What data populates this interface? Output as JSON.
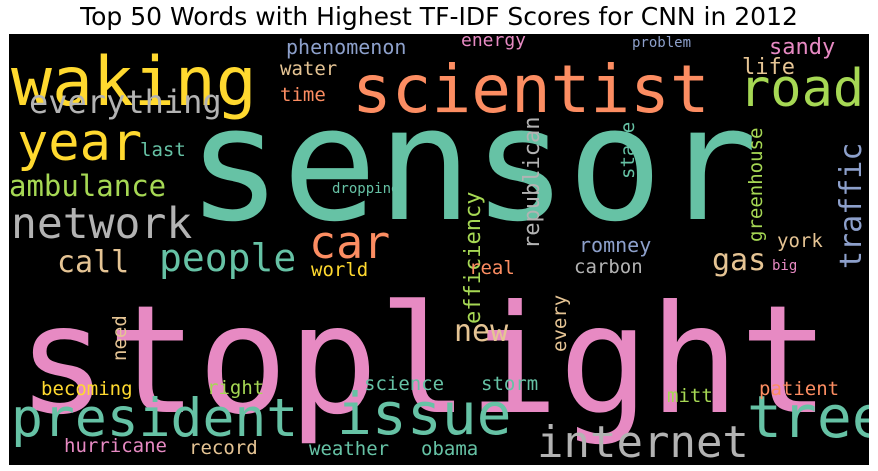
{
  "chart_data": {
    "type": "wordcloud",
    "title": "Top 50 Words with Highest TF-IDF Scores for CNN in 2012",
    "background": "#000000",
    "palette": [
      "#66c2a5",
      "#fc8d62",
      "#8da0cb",
      "#e78ac3",
      "#a6d854",
      "#ffd92f",
      "#e5c494",
      "#b3b3b3"
    ],
    "words": [
      {
        "text": "sensor",
        "color": "#66c2a5",
        "orientation": "horizontal"
      },
      {
        "text": "stoplight",
        "color": "#e78ac3",
        "orientation": "horizontal"
      },
      {
        "text": "scientist",
        "color": "#fc8d62",
        "orientation": "horizontal"
      },
      {
        "text": "waking",
        "color": "#ffd92f",
        "orientation": "horizontal"
      },
      {
        "text": "road",
        "color": "#a6d854",
        "orientation": "horizontal"
      },
      {
        "text": "issue",
        "color": "#66c2a5",
        "orientation": "horizontal"
      },
      {
        "text": "president",
        "color": "#66c2a5",
        "orientation": "horizontal"
      },
      {
        "text": "tree",
        "color": "#66c2a5",
        "orientation": "horizontal"
      },
      {
        "text": "year",
        "color": "#ffd92f",
        "orientation": "horizontal"
      },
      {
        "text": "internet",
        "color": "#b3b3b3",
        "orientation": "horizontal"
      },
      {
        "text": "network",
        "color": "#b3b3b3",
        "orientation": "horizontal"
      },
      {
        "text": "car",
        "color": "#fc8d62",
        "orientation": "horizontal"
      },
      {
        "text": "everything",
        "color": "#b3b3b3",
        "orientation": "horizontal"
      },
      {
        "text": "people",
        "color": "#66c2a5",
        "orientation": "horizontal"
      },
      {
        "text": "ambulance",
        "color": "#a6d854",
        "orientation": "horizontal"
      },
      {
        "text": "traffic",
        "color": "#8da0cb",
        "orientation": "vertical"
      },
      {
        "text": "call",
        "color": "#e5c494",
        "orientation": "horizontal"
      },
      {
        "text": "new",
        "color": "#e5c494",
        "orientation": "horizontal"
      },
      {
        "text": "gas",
        "color": "#e5c494",
        "orientation": "horizontal"
      },
      {
        "text": "republican",
        "color": "#b3b3b3",
        "orientation": "vertical"
      },
      {
        "text": "efficiency",
        "color": "#a6d854",
        "orientation": "vertical"
      },
      {
        "text": "greenhouse",
        "color": "#a6d854",
        "orientation": "vertical"
      },
      {
        "text": "phenomenon",
        "color": "#8da0cb",
        "orientation": "horizontal"
      },
      {
        "text": "sandy",
        "color": "#e78ac3",
        "orientation": "horizontal"
      },
      {
        "text": "life",
        "color": "#e5c494",
        "orientation": "horizontal"
      },
      {
        "text": "water",
        "color": "#e5c494",
        "orientation": "horizontal"
      },
      {
        "text": "energy",
        "color": "#e78ac3",
        "orientation": "horizontal"
      },
      {
        "text": "time",
        "color": "#fc8d62",
        "orientation": "horizontal"
      },
      {
        "text": "last",
        "color": "#66c2a5",
        "orientation": "horizontal"
      },
      {
        "text": "state",
        "color": "#66c2a5",
        "orientation": "vertical"
      },
      {
        "text": "romney",
        "color": "#8da0cb",
        "orientation": "horizontal"
      },
      {
        "text": "carbon",
        "color": "#b3b3b3",
        "orientation": "horizontal"
      },
      {
        "text": "york",
        "color": "#e5c494",
        "orientation": "horizontal"
      },
      {
        "text": "world",
        "color": "#ffd92f",
        "orientation": "horizontal"
      },
      {
        "text": "real",
        "color": "#fc8d62",
        "orientation": "horizontal"
      },
      {
        "text": "every",
        "color": "#e5c494",
        "orientation": "vertical"
      },
      {
        "text": "need",
        "color": "#e5c494",
        "orientation": "vertical"
      },
      {
        "text": "right",
        "color": "#a6d854",
        "orientation": "horizontal"
      },
      {
        "text": "becoming",
        "color": "#ffd92f",
        "orientation": "horizontal"
      },
      {
        "text": "science",
        "color": "#66c2a5",
        "orientation": "horizontal"
      },
      {
        "text": "storm",
        "color": "#66c2a5",
        "orientation": "horizontal"
      },
      {
        "text": "mitt",
        "color": "#a6d854",
        "orientation": "horizontal"
      },
      {
        "text": "patient",
        "color": "#fc8d62",
        "orientation": "horizontal"
      },
      {
        "text": "hurricane",
        "color": "#e78ac3",
        "orientation": "horizontal"
      },
      {
        "text": "record",
        "color": "#e5c494",
        "orientation": "horizontal"
      },
      {
        "text": "weather",
        "color": "#66c2a5",
        "orientation": "horizontal"
      },
      {
        "text": "obama",
        "color": "#66c2a5",
        "orientation": "horizontal"
      },
      {
        "text": "droppings",
        "color": "#66c2a5",
        "orientation": "horizontal"
      },
      {
        "text": "problem",
        "color": "#8da0cb",
        "orientation": "horizontal"
      },
      {
        "text": "big",
        "color": "#e78ac3",
        "orientation": "horizontal"
      }
    ]
  }
}
